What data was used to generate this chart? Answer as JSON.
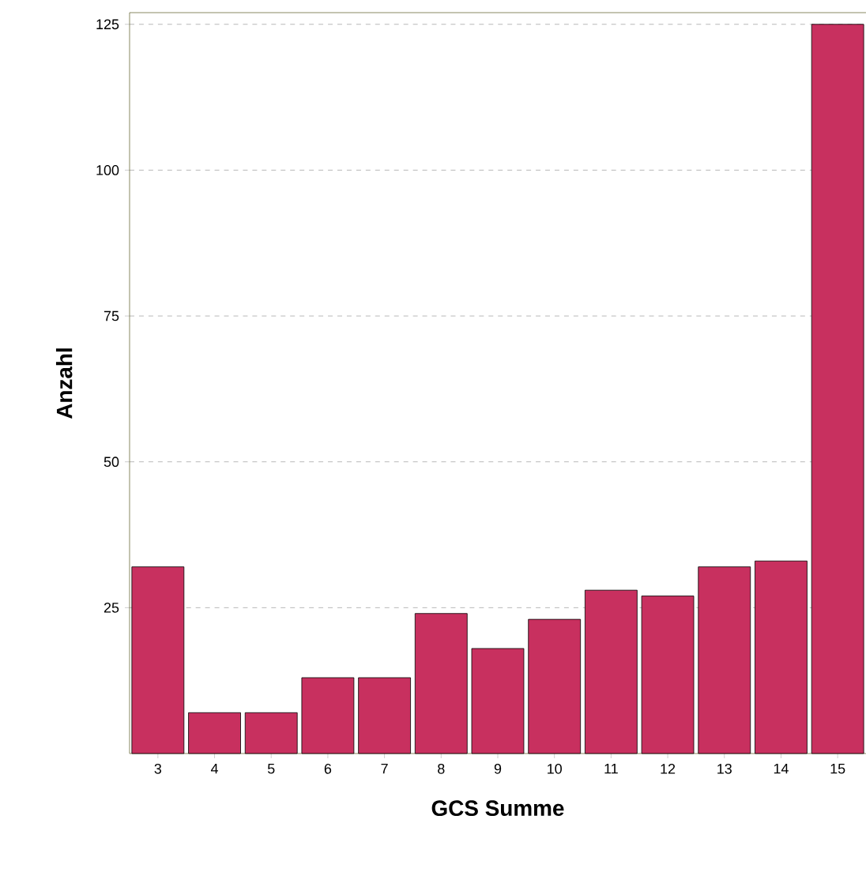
{
  "chart_data": {
    "type": "bar",
    "xlabel": "GCS Summe",
    "ylabel": "Anzahl",
    "categories": [
      "3",
      "4",
      "5",
      "6",
      "7",
      "8",
      "9",
      "10",
      "11",
      "12",
      "13",
      "14",
      "15"
    ],
    "values": [
      32,
      7,
      7,
      13,
      13,
      24,
      18,
      23,
      28,
      27,
      32,
      33,
      125
    ],
    "color": "#c8305f",
    "ylim": [
      0,
      127
    ],
    "yticks": [
      25,
      50,
      75,
      100,
      125
    ],
    "grid": "y"
  }
}
